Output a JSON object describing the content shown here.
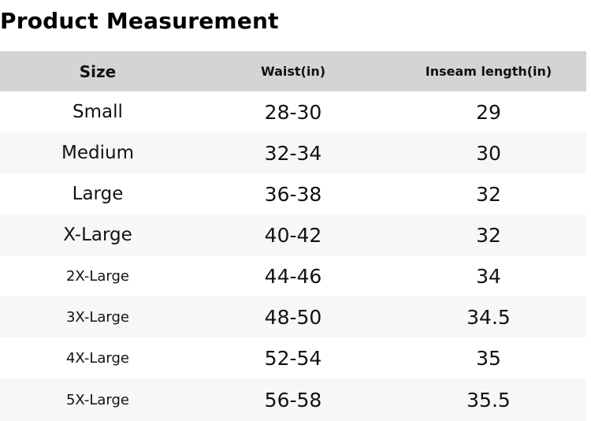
{
  "page": {
    "title": "Product Measurement"
  },
  "table": {
    "headers": {
      "size": "Size",
      "waist": "Waist(in)",
      "inseam": "Inseam length(in)"
    },
    "rows": [
      {
        "size": "Small",
        "waist": "28-30",
        "inseam": "29"
      },
      {
        "size": "Medium",
        "waist": "32-34",
        "inseam": "30"
      },
      {
        "size": "Large",
        "waist": "36-38",
        "inseam": "32"
      },
      {
        "size": "X-Large",
        "waist": "40-42",
        "inseam": "32"
      },
      {
        "size": "2X-Large",
        "waist": "44-46",
        "inseam": "34"
      },
      {
        "size": "3X-Large",
        "waist": "48-50",
        "inseam": "34.5"
      },
      {
        "size": "4X-Large",
        "waist": "52-54",
        "inseam": "35"
      },
      {
        "size": "5X-Large",
        "waist": "56-58",
        "inseam": "35.5"
      }
    ],
    "colors": {
      "header_bg": "#d4d4d4",
      "stripe_bg": "#f7f7f7",
      "text": "#121212"
    }
  }
}
